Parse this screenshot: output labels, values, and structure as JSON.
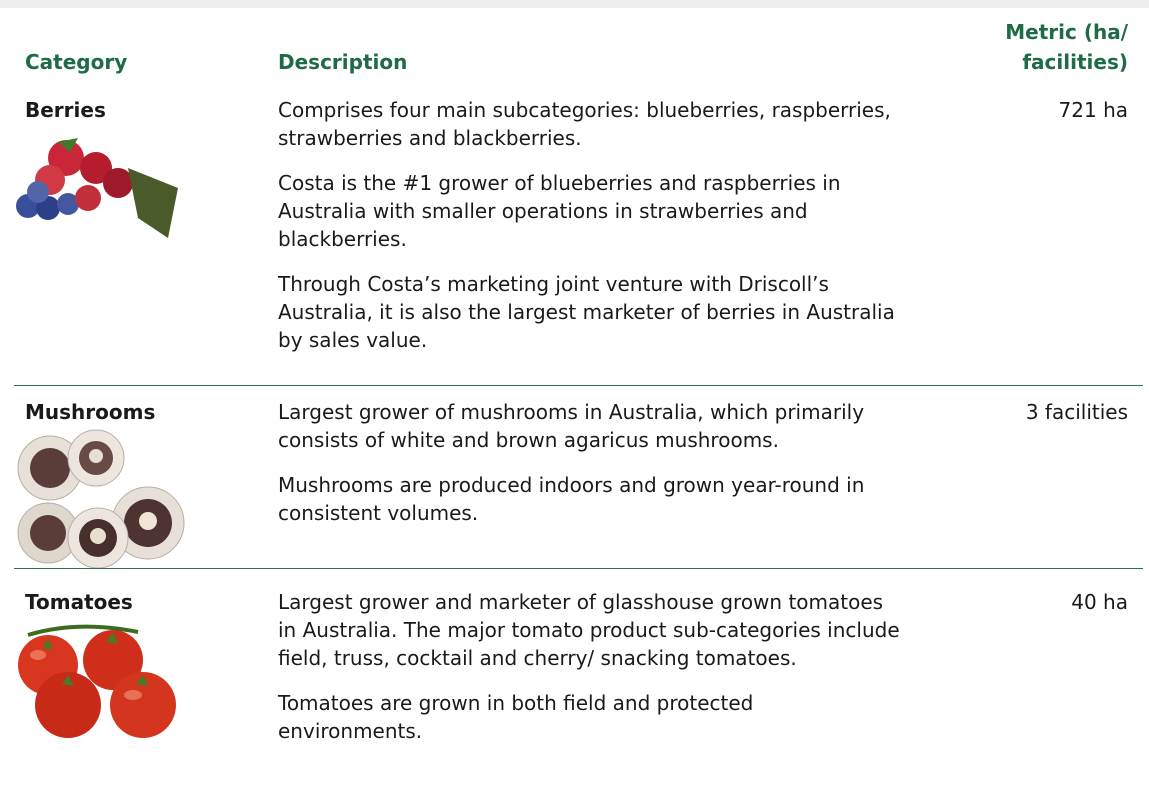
{
  "header": {
    "category": "Category",
    "description": "Description",
    "metric": "Metric (ha/ facilities)"
  },
  "rows": [
    {
      "category": "Berries",
      "paragraphs": [
        "Comprises four main subcategories: blueberries, raspberries, strawberries and blackberries.",
        "Costa is the #1 grower of blueberries and raspberries in Australia with smaller operations in strawberries and blackberries.",
        "Through Costa’s marketing joint venture with Driscoll’s Australia, it is also the largest marketer of berries in Australia by sales value."
      ],
      "metric": "721 ha"
    },
    {
      "category": "Mushrooms",
      "paragraphs": [
        "Largest grower of mushrooms in Australia, which primarily consists of white and brown agaricus mushrooms.",
        "Mushrooms are produced indoors and grown year-round in consistent volumes."
      ],
      "metric": "3 facilities"
    },
    {
      "category": "Tomatoes",
      "paragraphs": [
        "Largest grower and marketer of glasshouse grown tomatoes in Australia. The major tomato product sub-categories include field, truss, cocktail and cherry/ snacking tomatoes.",
        "Tomatoes are grown in both field and protected environments."
      ],
      "metric": "40 ha"
    }
  ]
}
